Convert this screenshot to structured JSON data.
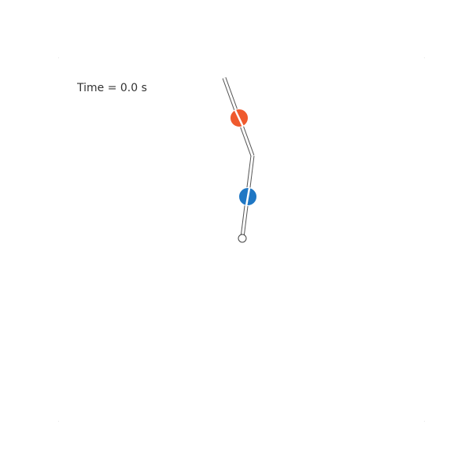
{
  "time_readout": "Time = 0.0 s",
  "colors": {
    "background": "#ffffff",
    "rod_outline": "#555555",
    "rod_fill": "#ffffff",
    "mass_upper": "#ef5a2e",
    "mass_lower": "#1f77c4",
    "pivot_fill": "#ffffff",
    "pivot_outline": "#444444",
    "text": "#333333"
  },
  "icons": {
    "pivot": "pivot-circle-icon",
    "mass_upper": "orange-mass-icon",
    "mass_lower": "blue-mass-icon"
  }
}
